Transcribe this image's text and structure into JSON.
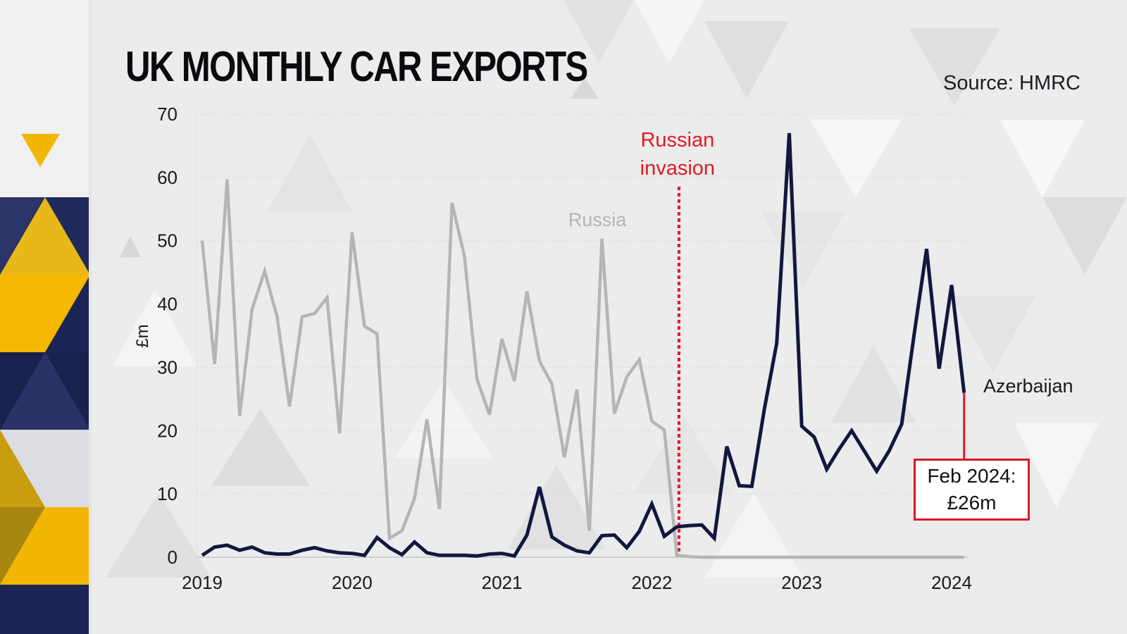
{
  "header": {
    "title": "UK MONTHLY CAR EXPORTS",
    "source": "Source: HMRC"
  },
  "annotation": {
    "line1": "Feb 2024:",
    "line2": "£26m"
  },
  "chart_data": {
    "type": "line",
    "title": "UK MONTHLY CAR EXPORTS",
    "ylabel": "£m",
    "xlabel": "",
    "ylim": [
      0,
      70
    ],
    "xlim": [
      "2019-01",
      "2024-03"
    ],
    "y_ticks": [
      0,
      10,
      20,
      30,
      40,
      50,
      60,
      70
    ],
    "x_ticks": [
      "2019",
      "2020",
      "2021",
      "2022",
      "2023",
      "2024"
    ],
    "grid": "dotted horizontal",
    "colors": {
      "russia": "#b5b5b5",
      "azerbaijan": "#12173f",
      "event": "#e01b22",
      "text": "#1a1a1a"
    },
    "event": {
      "label_line1": "Russian",
      "label_line2": "invasion",
      "date": "2022-03"
    },
    "series": [
      {
        "name": "Russia",
        "key": "russia",
        "start": "2019-01",
        "values": [
          50,
          30.5,
          59.7,
          22.3,
          39.2,
          45.2,
          38,
          23.8,
          38,
          38.5,
          41,
          19.6,
          51.3,
          36.5,
          35.3,
          3,
          4.2,
          9.3,
          21.8,
          7.6,
          56,
          47.5,
          28.2,
          22.5,
          34.5,
          27.8,
          42,
          31,
          27.4,
          15.8,
          26.5,
          4.2,
          50.3,
          22.7,
          28.5,
          31.2,
          21.5,
          20.1,
          0.3,
          0.1,
          0,
          0,
          0,
          0,
          0,
          0,
          0,
          0,
          0,
          0,
          0,
          0,
          0,
          0,
          0,
          0,
          0,
          0,
          0,
          0,
          0,
          0
        ]
      },
      {
        "name": "Azerbaijan",
        "key": "azerbaijan",
        "start": "2019-01",
        "values": [
          0.3,
          1.6,
          1.9,
          1.1,
          1.6,
          0.7,
          0.5,
          0.5,
          1.1,
          1.5,
          1.0,
          0.7,
          0.6,
          0.3,
          3.1,
          1.5,
          0.4,
          2.4,
          0.7,
          0.3,
          0.3,
          0.3,
          0.2,
          0.5,
          0.6,
          0.2,
          3.5,
          11.1,
          3.2,
          1.9,
          1.0,
          0.7,
          3.4,
          3.5,
          1.5,
          4.1,
          8.4,
          3.3,
          4.8,
          5.0,
          5.1,
          3.0,
          17.5,
          11.3,
          11.2,
          23.3,
          33.8,
          67.0,
          20.7,
          19.0,
          13.9,
          17.1,
          20.0,
          16.8,
          13.6,
          16.8,
          21.0,
          35.2,
          48.7,
          29.8,
          43.0,
          26.0
        ]
      }
    ]
  }
}
